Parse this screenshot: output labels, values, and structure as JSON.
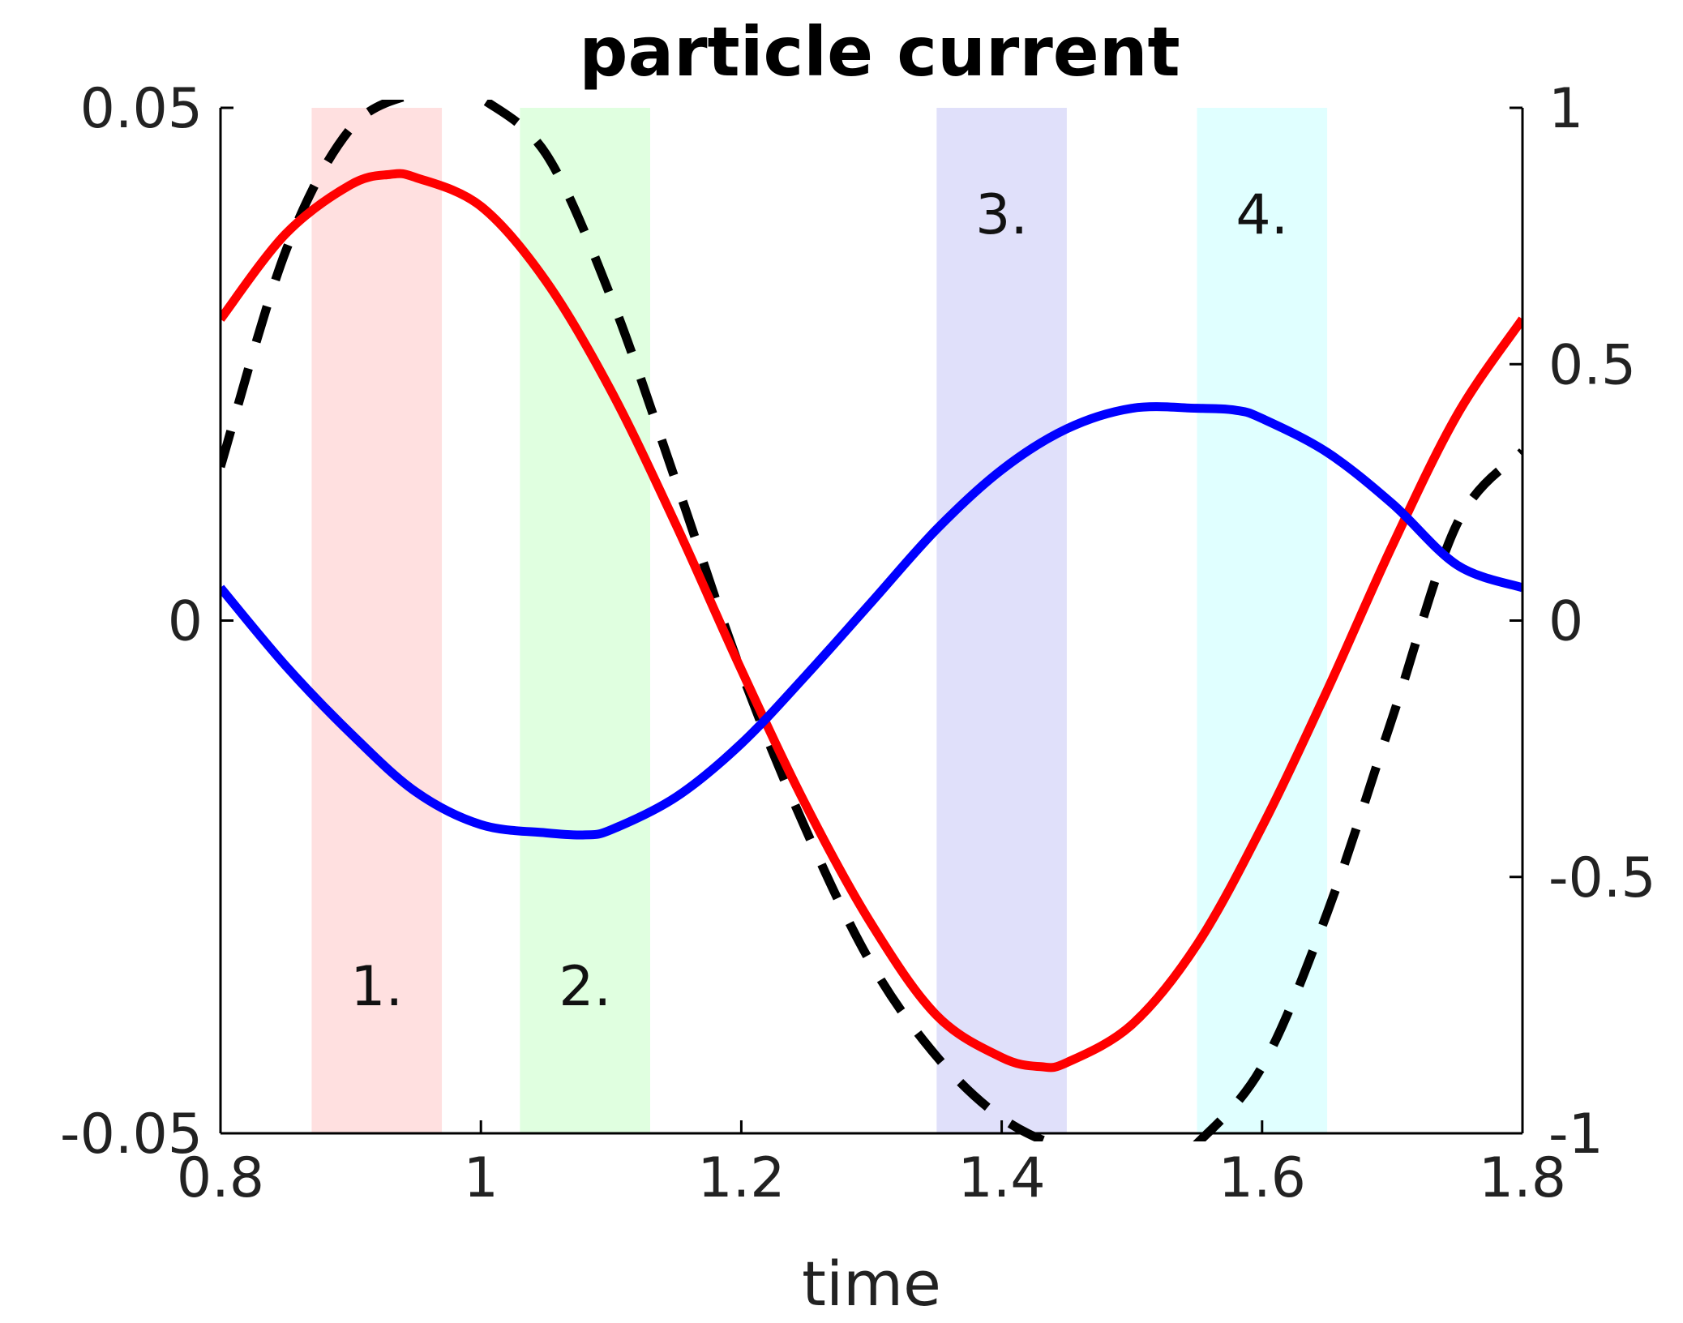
{
  "chart_data": {
    "type": "line",
    "title": "particle current",
    "xlabel": "time",
    "ylabel": "",
    "y2label": "",
    "xlim": [
      0.8,
      1.8
    ],
    "ylim": [
      -0.05,
      0.05
    ],
    "y2lim": [
      -1,
      1
    ],
    "xticks": [
      "0.8",
      "1",
      "1.2",
      "1.4",
      "1.6",
      "1.8"
    ],
    "xtick_values": [
      0.8,
      1.0,
      1.2,
      1.4,
      1.6,
      1.8
    ],
    "yticks": [
      "-0.05",
      "0",
      "0.05"
    ],
    "ytick_values": [
      -0.05,
      0,
      0.05
    ],
    "y2ticks": [
      "-1",
      "-0.5",
      "0",
      "0.5",
      "1"
    ],
    "y2tick_values": [
      -1,
      -0.5,
      0,
      0.5,
      1
    ],
    "grid": false,
    "bands": [
      {
        "label": "1.",
        "x": [
          0.87,
          0.97
        ],
        "color": "#ffe0e0",
        "label_pos": "bottom"
      },
      {
        "label": "2.",
        "x": [
          1.03,
          1.13
        ],
        "color": "#e0ffe0",
        "label_pos": "bottom"
      },
      {
        "label": "3.",
        "x": [
          1.35,
          1.45
        ],
        "color": "#e0e0fa",
        "label_pos": "top"
      },
      {
        "label": "4.",
        "x": [
          1.55,
          1.65
        ],
        "color": "#e0ffff",
        "label_pos": "top"
      }
    ],
    "series": [
      {
        "axis": "left",
        "color": "#ff0000",
        "style": "solid",
        "x": [
          0.8,
          0.85,
          0.9,
          0.93,
          0.95,
          1.0,
          1.05,
          1.1,
          1.15,
          1.2,
          1.25,
          1.3,
          1.35,
          1.4,
          1.43,
          1.45,
          1.5,
          1.55,
          1.6,
          1.65,
          1.7,
          1.75,
          1.8
        ],
        "y": [
          0.0294,
          0.0377,
          0.0425,
          0.0435,
          0.0432,
          0.0404,
          0.0331,
          0.0224,
          0.0093,
          -0.0048,
          -0.0181,
          -0.0296,
          -0.0385,
          -0.0426,
          -0.0435,
          -0.0431,
          -0.0394,
          -0.0316,
          -0.0201,
          -0.0068,
          0.0073,
          0.0201,
          0.0294
        ]
      },
      {
        "axis": "left",
        "color": "#0000ff",
        "style": "solid",
        "x": [
          0.8,
          0.85,
          0.9,
          0.95,
          1.0,
          1.05,
          1.08,
          1.1,
          1.15,
          1.2,
          1.25,
          1.3,
          1.35,
          1.4,
          1.45,
          1.5,
          1.55,
          1.58,
          1.6,
          1.65,
          1.7,
          1.75,
          1.8
        ],
        "y": [
          0.0032,
          -0.0044,
          -0.011,
          -0.0167,
          -0.0199,
          -0.0207,
          -0.0209,
          -0.0204,
          -0.0172,
          -0.012,
          -0.0053,
          0.0018,
          0.0089,
          0.0147,
          0.0187,
          0.0207,
          0.0207,
          0.0205,
          0.0197,
          0.0164,
          0.0114,
          0.0054,
          0.0032
        ]
      },
      {
        "axis": "right",
        "color": "#000000",
        "style": "dashed",
        "x": [
          0.8,
          0.85,
          0.9,
          0.95,
          0.98,
          1.0,
          1.05,
          1.1,
          1.15,
          1.2,
          1.25,
          1.3,
          1.35,
          1.4,
          1.45,
          1.5,
          1.53,
          1.55,
          1.6,
          1.65,
          1.7,
          1.75,
          1.8
        ],
        "y": [
          0.3,
          0.72,
          0.96,
          1.03,
          1.05,
          1.02,
          0.91,
          0.63,
          0.27,
          -0.1,
          -0.41,
          -0.67,
          -0.85,
          -0.97,
          -1.03,
          -1.05,
          -1.05,
          -1.02,
          -0.87,
          -0.57,
          -0.19,
          0.19,
          0.33
        ]
      }
    ]
  }
}
